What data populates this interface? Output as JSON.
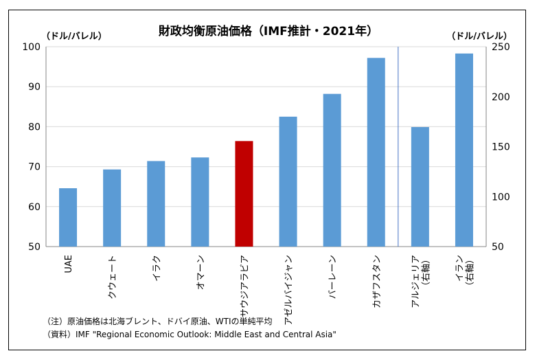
{
  "chart_data": {
    "type": "bar",
    "title": "財政均衡原油価格（IMF推計・2021年）",
    "left_axis_unit": "（ドル/バレル）",
    "right_axis_unit": "（ドル/バレル）",
    "left_axis": {
      "ylim": [
        50,
        100
      ],
      "ticks": [
        50,
        60,
        70,
        80,
        90,
        100
      ]
    },
    "right_axis": {
      "ylim": [
        50,
        250
      ],
      "ticks": [
        50,
        100,
        150,
        200,
        250
      ]
    },
    "grid": true,
    "legend": "none",
    "categories": [
      "UAE",
      "クウェート",
      "イラク",
      "オマーン",
      "サウジアラビア",
      "アゼルバイジャン",
      "バーレーン",
      "カザフスタン",
      "アルジェリア（右軸）",
      "イラン（右軸）"
    ],
    "label_lines": [
      [
        "UAE"
      ],
      [
        "クウェート"
      ],
      [
        "イラク"
      ],
      [
        "オマーン"
      ],
      [
        "サウジアラビア"
      ],
      [
        "アゼルバイジャン"
      ],
      [
        "バーレーン"
      ],
      [
        "カザフスタン"
      ],
      [
        "アルジェリア",
        "（右軸）"
      ],
      [
        "イラン",
        "（右軸）"
      ]
    ],
    "values": [
      64.6,
      69.3,
      71.4,
      72.3,
      76.4,
      82.5,
      88.2,
      97.2,
      169.6,
      243.2
    ],
    "axis": [
      "left",
      "left",
      "left",
      "left",
      "left",
      "left",
      "left",
      "left",
      "right",
      "right"
    ],
    "colors": {
      "default": "#5b9bd5",
      "highlight": "#c00000",
      "grid": "#d9d9d9",
      "axis": "#868686",
      "divider": "#4472c4"
    },
    "highlight_index": 4
  },
  "notes": [
    "（注）原油価格は北海ブレント、ドバイ原油、WTIの単純平均",
    "（資料）IMF \"Regional Economic Outlook: Middle East and Central Asia\""
  ]
}
